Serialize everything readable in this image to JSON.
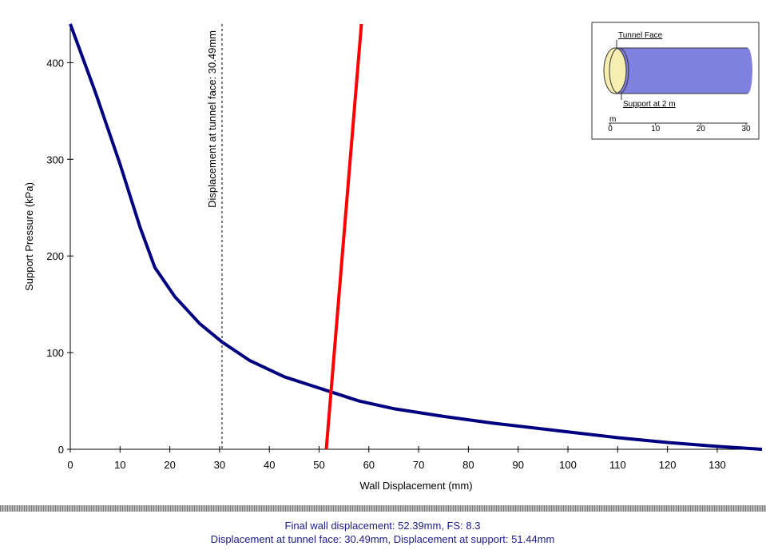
{
  "chart_data": {
    "type": "line",
    "x_label": "Wall Displacement (mm)",
    "y_label": "Support Pressure (kPa)",
    "xlim": [
      0,
      139
    ],
    "ylim": [
      0,
      440
    ],
    "xticks": [
      0,
      10,
      20,
      30,
      40,
      50,
      60,
      70,
      80,
      90,
      100,
      110,
      120,
      130
    ],
    "yticks": [
      0,
      100,
      200,
      300,
      400
    ],
    "series": [
      {
        "color": "#000080",
        "x": [
          0,
          5,
          10,
          14,
          17,
          21,
          26,
          30.5,
          36,
          43,
          52,
          58,
          65,
          75,
          85,
          100,
          110,
          120,
          130,
          139
        ],
        "values": [
          440,
          370,
          295,
          230,
          188,
          158,
          130,
          111,
          92,
          75,
          60,
          50,
          42,
          34,
          27,
          18,
          12,
          7,
          3,
          0
        ]
      },
      {
        "color": "#ff0000",
        "x": [
          51.44,
          58.5
        ],
        "values": [
          0,
          440
        ]
      }
    ],
    "annotations": [
      {
        "x": 30.49,
        "label": "Displacement at tunnel face: 30.49mm"
      }
    ]
  },
  "inset": {
    "face_label": "Tunnel Face",
    "support_label": "Support at 2 m",
    "axis_label": "m",
    "xlim": [
      0,
      30
    ],
    "ticks": [
      0,
      10,
      20,
      30
    ]
  },
  "footer": [
    "Final wall displacement: 52.39mm, FS: 8.3",
    "Displacement at tunnel face: 30.49mm, Displacement at support: 51.44mm"
  ]
}
